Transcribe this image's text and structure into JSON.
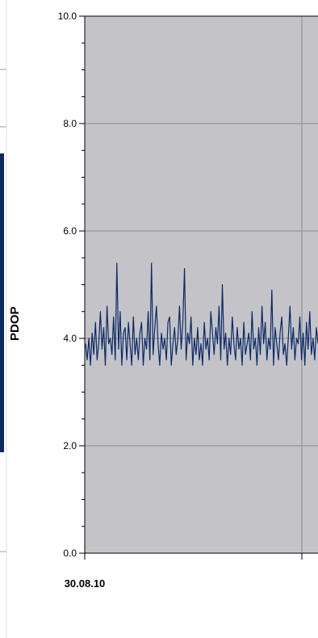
{
  "chart_data": {
    "type": "line",
    "title": "",
    "ylabel": "PDOP",
    "xlabel": "",
    "ylim": [
      0.0,
      10.0
    ],
    "yticks": [
      "0.0",
      "2.0",
      "4.0",
      "6.0",
      "8.0",
      "10.0"
    ],
    "xtick_labels": [
      "30.08.10"
    ],
    "grid": true,
    "colors": {
      "series": "#0a2a66",
      "plot_bg": "#c4c3c8",
      "grid": "#8a8a8a",
      "left_strip": "#0a2a66"
    },
    "series": [
      {
        "name": "",
        "values": [
          3.9,
          3.6,
          4.0,
          3.5,
          4.1,
          3.7,
          4.3,
          3.6,
          3.9,
          4.5,
          3.8,
          4.2,
          3.5,
          4.6,
          3.9,
          4.0,
          3.7,
          4.4,
          3.6,
          5.4,
          3.8,
          4.5,
          3.5,
          4.1,
          4.2,
          3.6,
          4.3,
          3.9,
          3.5,
          4.4,
          3.7,
          4.0,
          3.6,
          4.1,
          4.3,
          3.5,
          4.0,
          3.8,
          4.5,
          3.6,
          5.4,
          3.7,
          4.2,
          4.6,
          3.9,
          3.5,
          4.1,
          3.8,
          4.0,
          3.6,
          4.3,
          4.4,
          3.5,
          3.9,
          4.2,
          3.7,
          4.0,
          4.6,
          3.8,
          4.3,
          5.3,
          3.6,
          4.1,
          3.9,
          4.4,
          3.5,
          4.0,
          3.7,
          4.2,
          3.6,
          3.9,
          3.5,
          4.3,
          3.8,
          4.0,
          3.6,
          4.5,
          4.1,
          3.7,
          4.2,
          3.9,
          4.6,
          3.6,
          5.0,
          3.8,
          4.1,
          3.5,
          4.0,
          3.7,
          4.4,
          3.9,
          3.6,
          4.2,
          3.8,
          4.0,
          3.5,
          4.3,
          3.7,
          3.9,
          4.1,
          3.6,
          4.5,
          3.8,
          4.0,
          3.5,
          4.2,
          3.7,
          4.6,
          3.9,
          4.3,
          3.6,
          4.0,
          3.8,
          4.9,
          3.5,
          4.2,
          3.9,
          3.6,
          4.1,
          4.4,
          3.7,
          3.9,
          3.5,
          4.0,
          4.6,
          3.8,
          4.2,
          3.6,
          4.0,
          3.9,
          4.4,
          3.6,
          4.1,
          3.5,
          4.3,
          3.8,
          4.5,
          3.7,
          4.0,
          3.6,
          4.2,
          3.9
        ]
      }
    ]
  }
}
